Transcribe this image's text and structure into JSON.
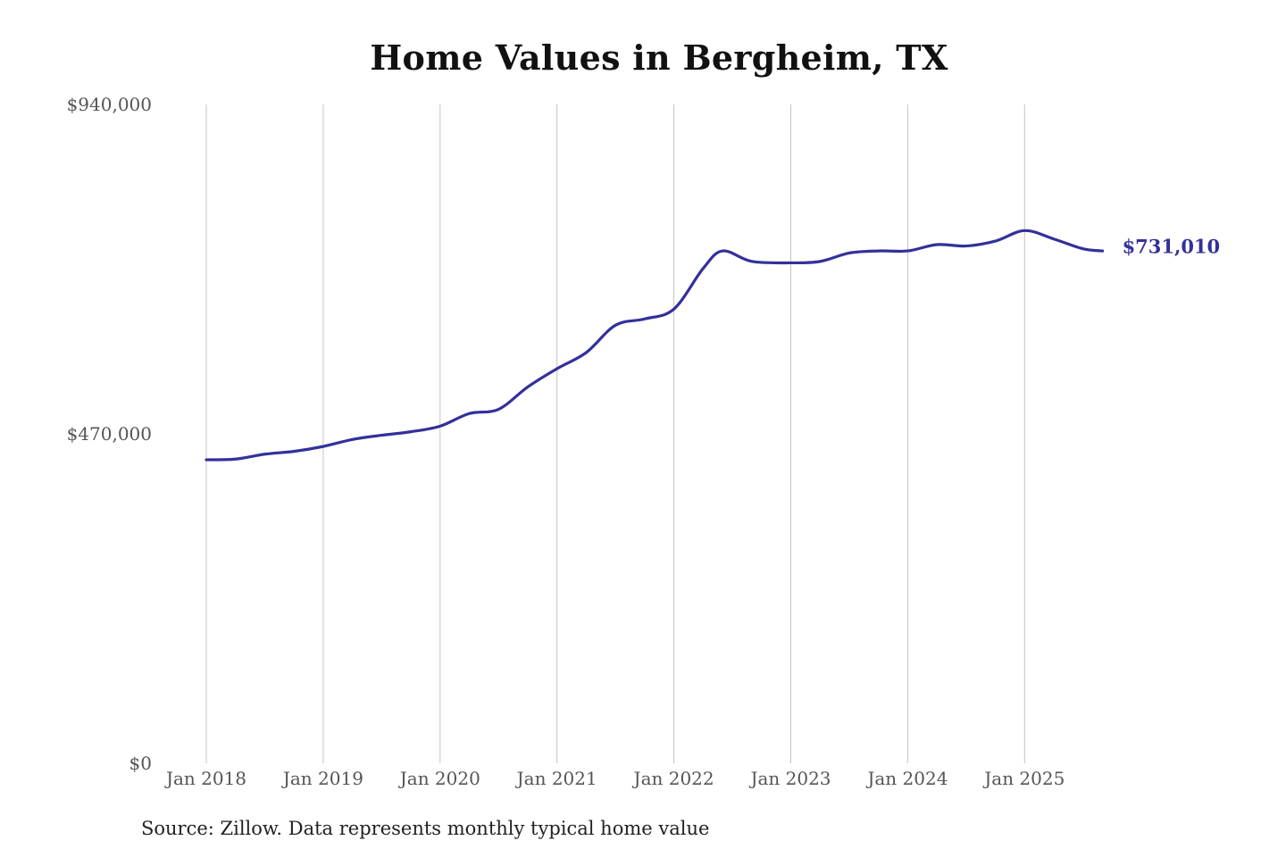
{
  "chart_data": {
    "type": "line",
    "title": "Home Values in Bergheim, TX",
    "source_note": "Source: Zillow. Data represents monthly typical home value",
    "xlabel": "",
    "ylabel": "",
    "ylim": [
      0,
      940000
    ],
    "y_ticks": [
      {
        "value": 0,
        "label": "$0"
      },
      {
        "value": 470000,
        "label": "$470,000"
      },
      {
        "value": 940000,
        "label": "$940,000"
      }
    ],
    "x_ticks": [
      {
        "value": "2018-01",
        "label": "Jan 2018"
      },
      {
        "value": "2019-01",
        "label": "Jan 2019"
      },
      {
        "value": "2020-01",
        "label": "Jan 2020"
      },
      {
        "value": "2021-01",
        "label": "Jan 2021"
      },
      {
        "value": "2022-01",
        "label": "Jan 2022"
      },
      {
        "value": "2023-01",
        "label": "Jan 2023"
      },
      {
        "value": "2024-01",
        "label": "Jan 2024"
      },
      {
        "value": "2025-01",
        "label": "Jan 2025"
      }
    ],
    "grid": "vertical",
    "line_color": "#33309a",
    "end_label": "$731,010",
    "series": [
      {
        "values": [
          {
            "x": "2018-01",
            "y": 433000
          },
          {
            "x": "2018-04",
            "y": 434000
          },
          {
            "x": "2018-07",
            "y": 441000
          },
          {
            "x": "2018-10",
            "y": 445000
          },
          {
            "x": "2019-01",
            "y": 452000
          },
          {
            "x": "2019-04",
            "y": 462000
          },
          {
            "x": "2019-07",
            "y": 468000
          },
          {
            "x": "2019-10",
            "y": 473000
          },
          {
            "x": "2020-01",
            "y": 481000
          },
          {
            "x": "2020-04",
            "y": 499000
          },
          {
            "x": "2020-07",
            "y": 505000
          },
          {
            "x": "2020-10",
            "y": 537000
          },
          {
            "x": "2021-01",
            "y": 563000
          },
          {
            "x": "2021-04",
            "y": 586000
          },
          {
            "x": "2021-07",
            "y": 625000
          },
          {
            "x": "2021-10",
            "y": 634000
          },
          {
            "x": "2022-01",
            "y": 648000
          },
          {
            "x": "2022-04",
            "y": 706000
          },
          {
            "x": "2022-06",
            "y": 731000
          },
          {
            "x": "2022-09",
            "y": 716000
          },
          {
            "x": "2023-01",
            "y": 714000
          },
          {
            "x": "2023-04",
            "y": 716000
          },
          {
            "x": "2023-07",
            "y": 728000
          },
          {
            "x": "2023-10",
            "y": 731000
          },
          {
            "x": "2024-01",
            "y": 731000
          },
          {
            "x": "2024-04",
            "y": 740000
          },
          {
            "x": "2024-07",
            "y": 738000
          },
          {
            "x": "2024-10",
            "y": 745000
          },
          {
            "x": "2025-01",
            "y": 760000
          },
          {
            "x": "2025-04",
            "y": 748000
          },
          {
            "x": "2025-07",
            "y": 734000
          },
          {
            "x": "2025-09",
            "y": 731010
          }
        ]
      }
    ]
  }
}
